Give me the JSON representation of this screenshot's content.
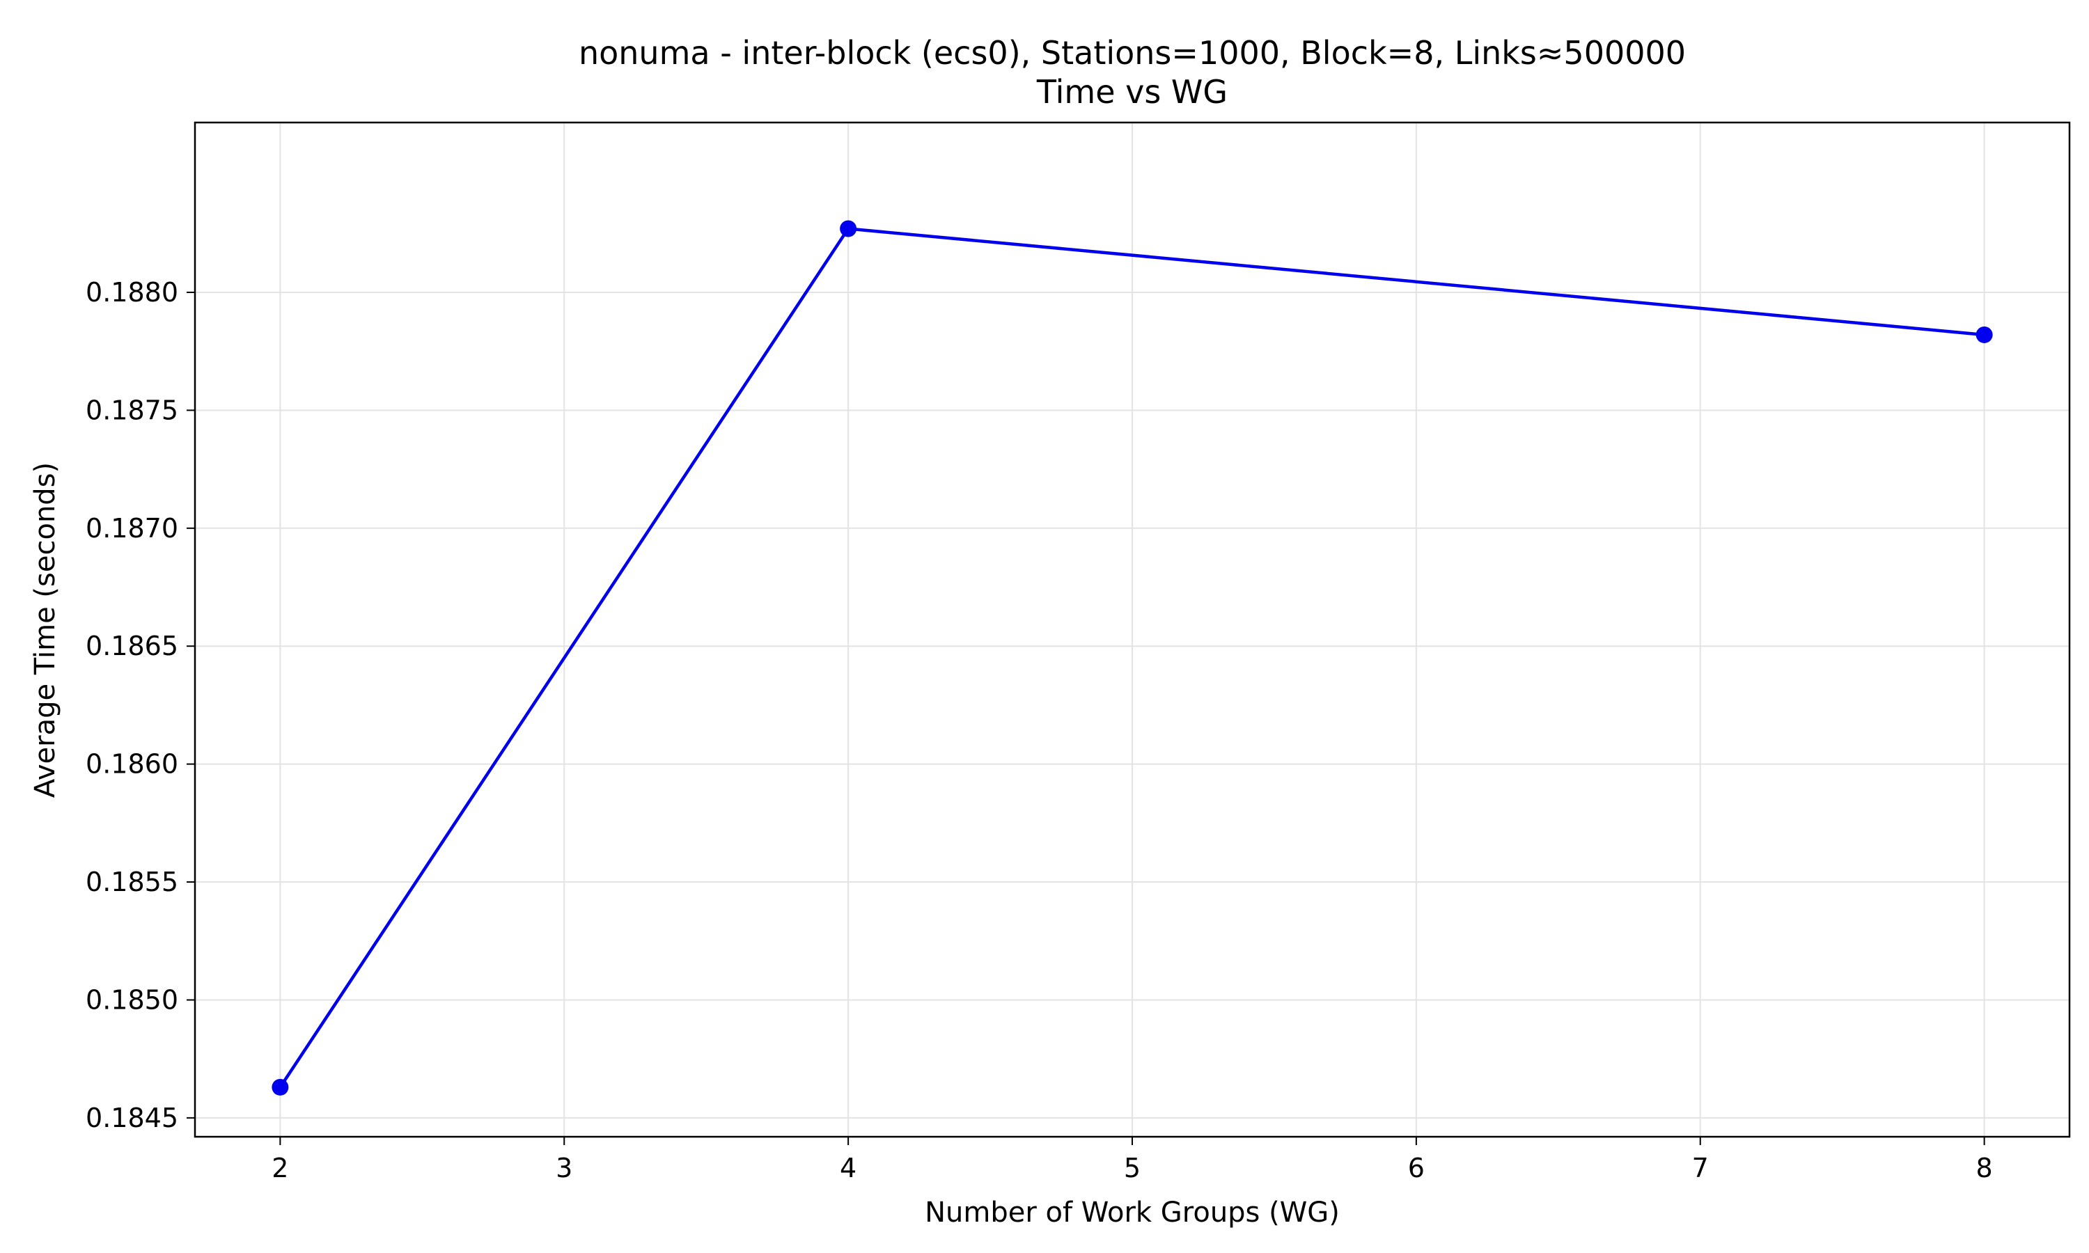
{
  "chart_data": {
    "type": "line",
    "title": "nonuma - inter-block (ecs0), Stations=1000, Block=8, Links≈500000",
    "subtitle": "Time vs WG",
    "xlabel": "Number of Work Groups (WG)",
    "ylabel": "Average Time (seconds)",
    "xlim": [
      1.7,
      8.3
    ],
    "ylim": [
      0.18442,
      0.18872
    ],
    "x_ticks": [
      2,
      3,
      4,
      5,
      6,
      7,
      8
    ],
    "x_tick_labels": [
      "2",
      "3",
      "4",
      "5",
      "6",
      "7",
      "8"
    ],
    "y_ticks": [
      0.1845,
      0.185,
      0.1855,
      0.186,
      0.1865,
      0.187,
      0.1875,
      0.188
    ],
    "y_tick_labels": [
      "0.1845",
      "0.1850",
      "0.1855",
      "0.1860",
      "0.1865",
      "0.1870",
      "0.1875",
      "0.1880"
    ],
    "grid": true,
    "series": [
      {
        "x": [
          2,
          4,
          8
        ],
        "values": [
          0.18463,
          0.18827,
          0.18782
        ],
        "color": "#0000ee",
        "marker": "circle"
      }
    ]
  }
}
